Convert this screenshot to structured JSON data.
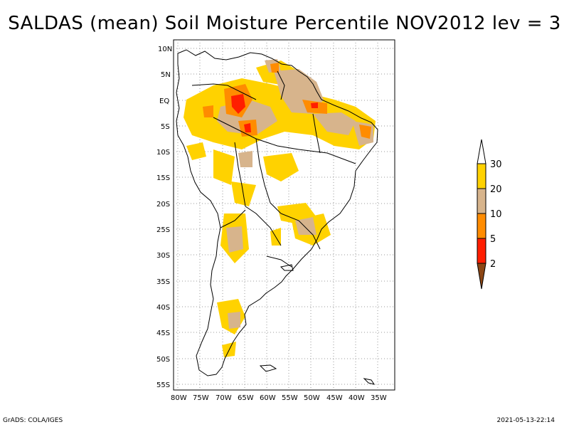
{
  "title": "SALDAS (mean) Soil Moisture Percentile NOV2012 lev = 3",
  "footer": {
    "left": "GrADS: COLA/IGES",
    "right": "2021-05-13-22:14"
  },
  "axes": {
    "x_labels": [
      "80W",
      "75W",
      "70W",
      "65W",
      "60W",
      "55W",
      "50W",
      "45W",
      "40W",
      "35W"
    ],
    "y_labels": [
      "10N",
      "5N",
      "EQ",
      "5S",
      "10S",
      "15S",
      "20S",
      "25S",
      "30S",
      "35S",
      "40S",
      "45S",
      "50S",
      "55S"
    ]
  },
  "legend": {
    "labels": [
      "30",
      "20",
      "10",
      "5",
      "2"
    ],
    "colors": {
      "above30": "#ffffff",
      "c20_30": "#ffd200",
      "c10_20": "#d7b48c",
      "c5_10": "#ff8c00",
      "c2_5": "#ff1e00",
      "below2": "#8c4614"
    }
  }
}
